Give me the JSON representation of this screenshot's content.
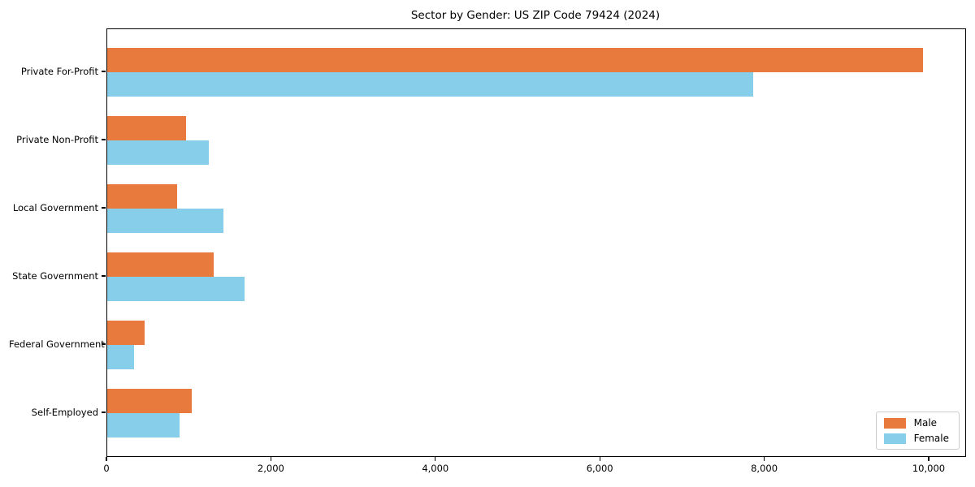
{
  "chart_data": {
    "type": "bar",
    "orientation": "horizontal",
    "title": "Sector by Gender: US ZIP Code 79424 (2024)",
    "categories": [
      "Private For-Profit",
      "Private Non-Profit",
      "Local Government",
      "State Government",
      "Federal Government",
      "Self-Employed"
    ],
    "series": [
      {
        "name": "Male",
        "color": "#E87A3D",
        "values": [
          9920,
          960,
          850,
          1290,
          450,
          1030
        ]
      },
      {
        "name": "Female",
        "color": "#87CEEB",
        "values": [
          7860,
          1240,
          1410,
          1670,
          330,
          880
        ]
      }
    ],
    "xlabel": "",
    "ylabel": "",
    "xlim": [
      0,
      10435
    ],
    "x_ticks": [
      {
        "value": 0,
        "label": "0"
      },
      {
        "value": 2000,
        "label": "2,000"
      },
      {
        "value": 4000,
        "label": "4,000"
      },
      {
        "value": 6000,
        "label": "6,000"
      },
      {
        "value": 8000,
        "label": "8,000"
      },
      {
        "value": 10000,
        "label": "10,000"
      }
    ],
    "grid": false,
    "legend": {
      "position": "lower right"
    }
  },
  "colors": {
    "background": "#ffffff",
    "spine": "#000000",
    "text": "#000000",
    "legend_border": "#cccccc"
  }
}
